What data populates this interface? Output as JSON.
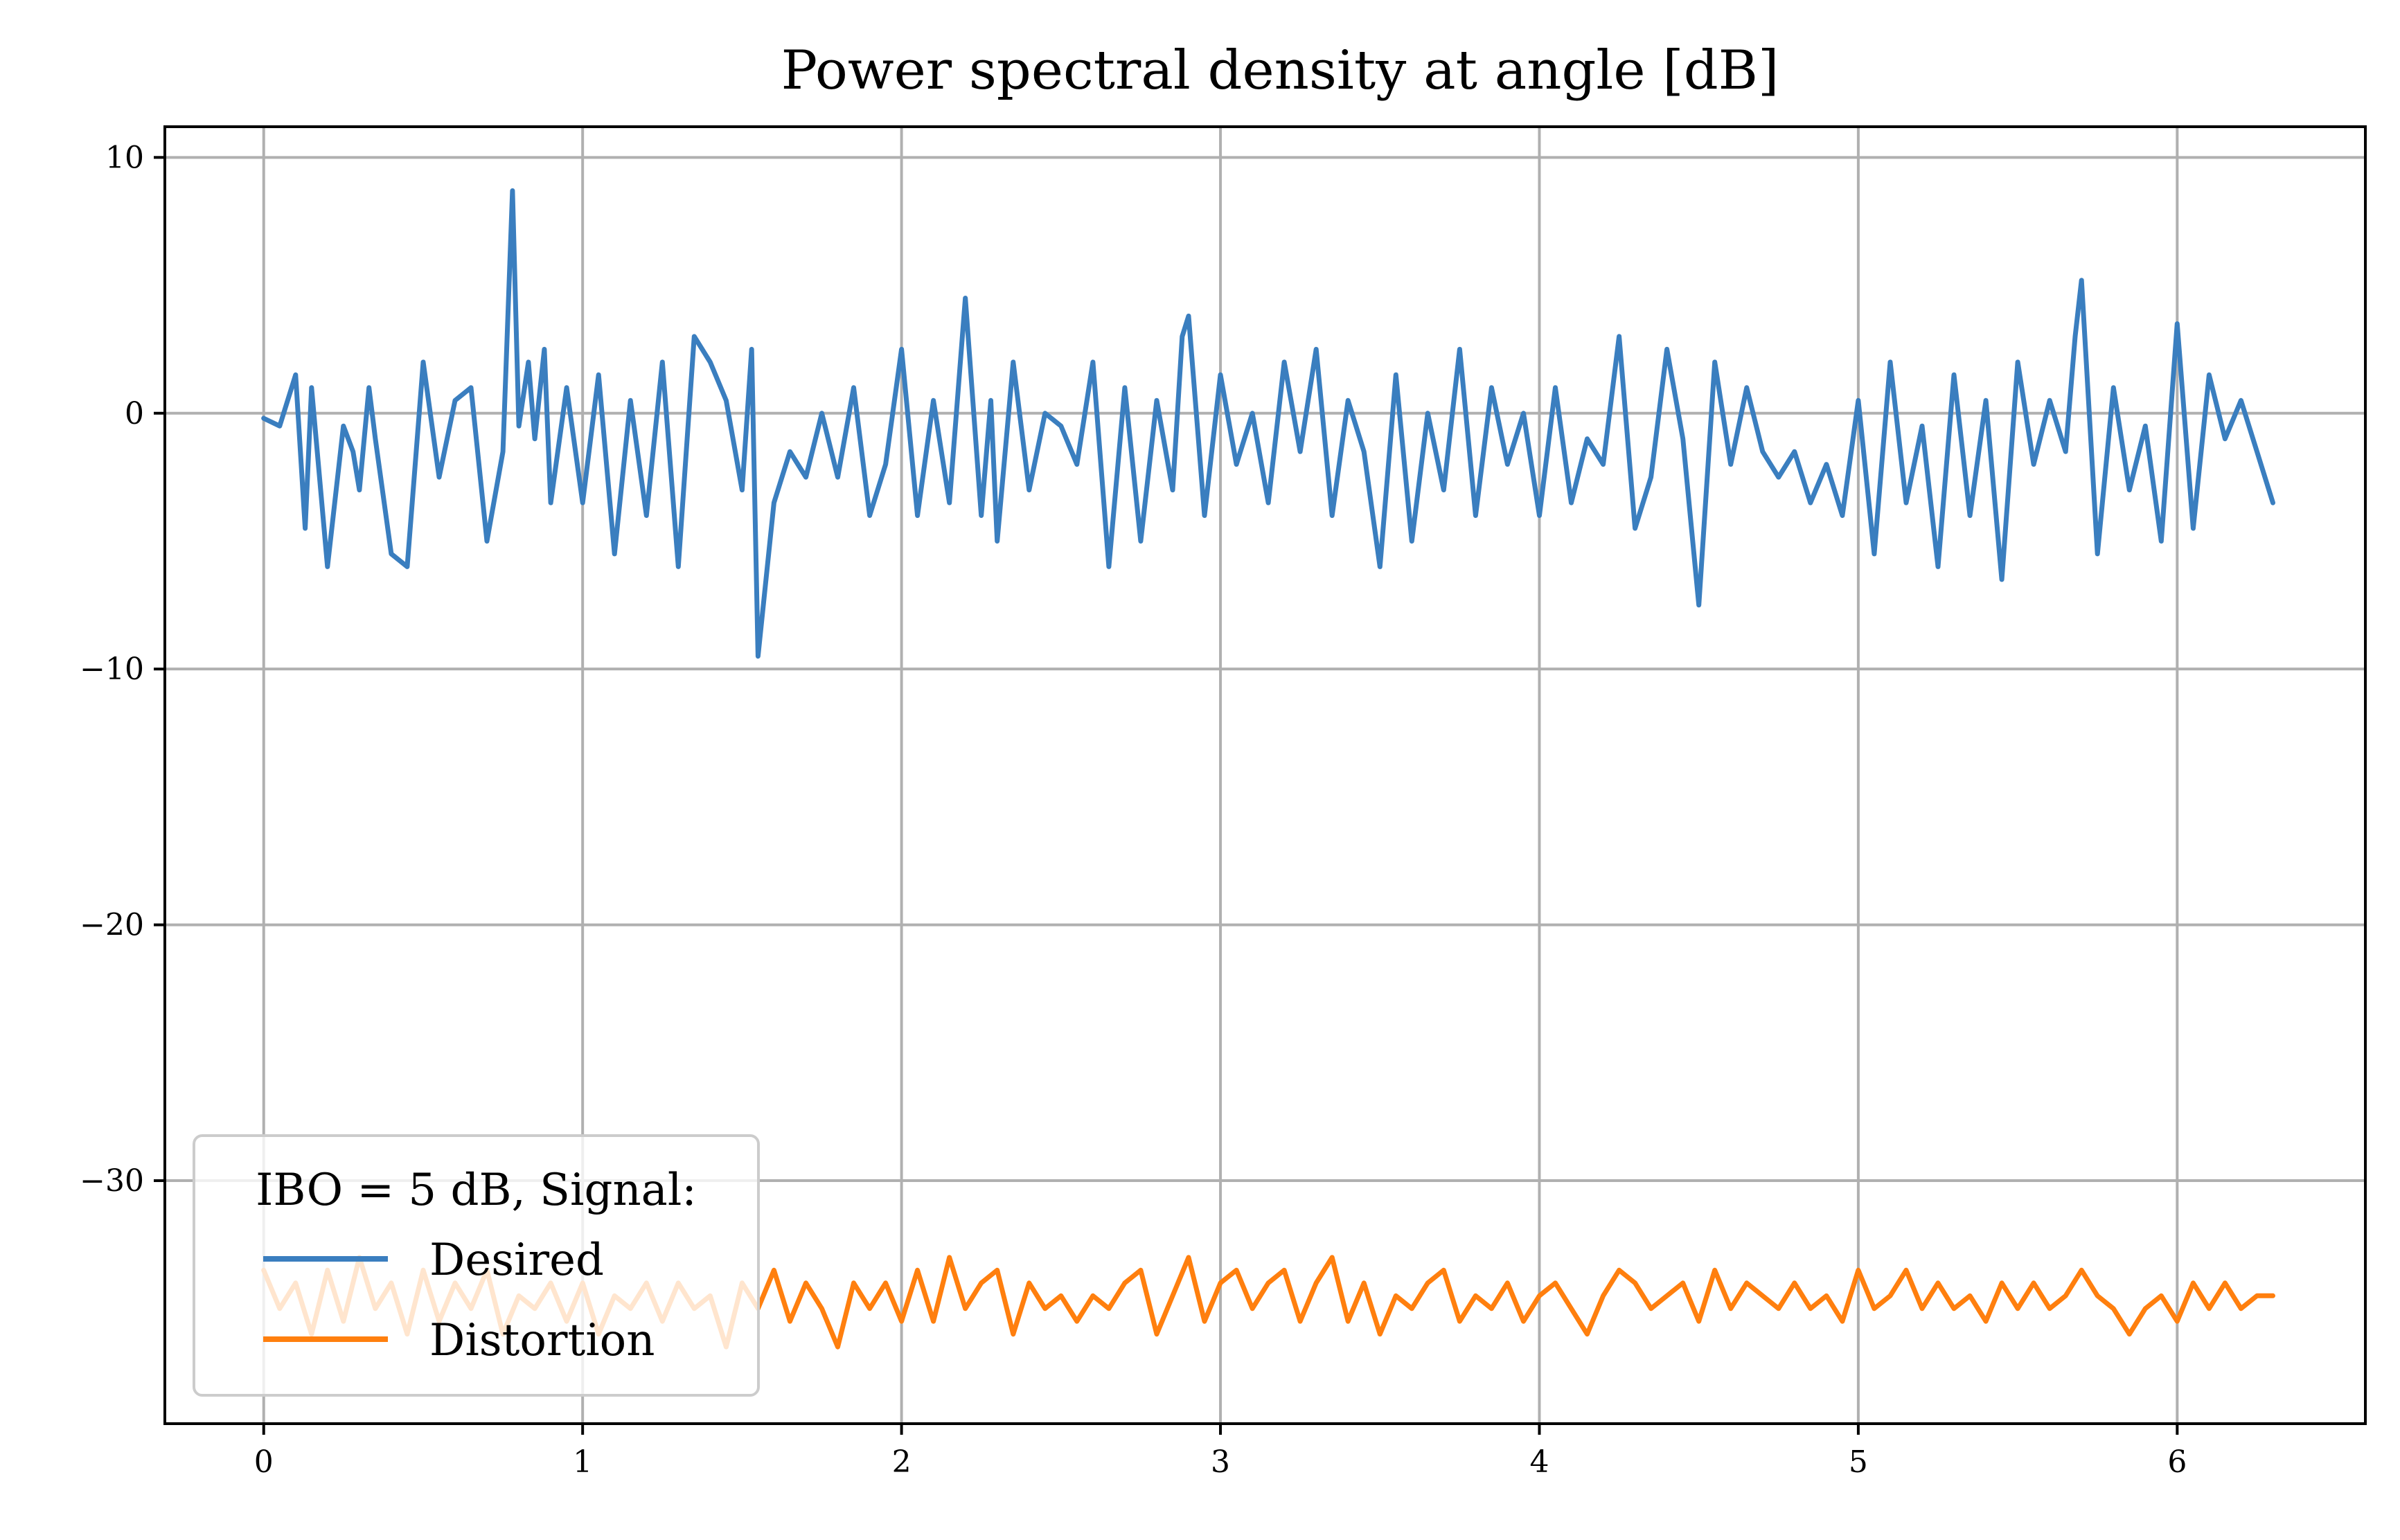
{
  "chart_data": {
    "type": "line",
    "title": "Power spectral density at angle [dB]",
    "xlabel": "",
    "ylabel": "",
    "xlim": [
      -0.31,
      6.59
    ],
    "ylim": [
      -39.5,
      11.2
    ],
    "xticks": [
      0,
      1,
      2,
      3,
      4,
      5,
      6
    ],
    "yticks": [
      10,
      0,
      -10,
      -20,
      -30
    ],
    "ytick_labels": [
      "10",
      "0",
      "−10",
      "−20",
      "−30"
    ],
    "grid": true,
    "legend": {
      "placement": "lower-left",
      "title": "IBO = 5 dB, Signal:",
      "entries": [
        "Desired",
        "Distortion"
      ]
    },
    "series": [
      {
        "name": "Desired",
        "color": "#3a7ebf",
        "x": [
          0.0,
          0.05,
          0.1,
          0.13,
          0.15,
          0.2,
          0.25,
          0.28,
          0.3,
          0.33,
          0.35,
          0.4,
          0.45,
          0.5,
          0.55,
          0.6,
          0.65,
          0.7,
          0.75,
          0.78,
          0.8,
          0.83,
          0.85,
          0.88,
          0.9,
          0.95,
          1.0,
          1.05,
          1.1,
          1.15,
          1.2,
          1.25,
          1.3,
          1.35,
          1.4,
          1.45,
          1.5,
          1.53,
          1.55,
          1.6,
          1.65,
          1.7,
          1.75,
          1.8,
          1.85,
          1.9,
          1.95,
          2.0,
          2.05,
          2.1,
          2.15,
          2.2,
          2.25,
          2.28,
          2.3,
          2.35,
          2.4,
          2.45,
          2.5,
          2.55,
          2.6,
          2.65,
          2.7,
          2.75,
          2.8,
          2.85,
          2.88,
          2.9,
          2.95,
          3.0,
          3.05,
          3.1,
          3.15,
          3.2,
          3.25,
          3.3,
          3.35,
          3.4,
          3.45,
          3.5,
          3.55,
          3.6,
          3.65,
          3.7,
          3.75,
          3.8,
          3.85,
          3.9,
          3.95,
          4.0,
          4.05,
          4.1,
          4.15,
          4.2,
          4.25,
          4.3,
          4.35,
          4.4,
          4.45,
          4.5,
          4.55,
          4.6,
          4.65,
          4.7,
          4.75,
          4.8,
          4.85,
          4.9,
          4.95,
          5.0,
          5.05,
          5.1,
          5.15,
          5.2,
          5.25,
          5.3,
          5.35,
          5.4,
          5.45,
          5.5,
          5.55,
          5.6,
          5.65,
          5.68,
          5.7,
          5.75,
          5.8,
          5.85,
          5.9,
          5.95,
          6.0,
          6.05,
          6.1,
          6.15,
          6.2,
          6.25,
          6.3
        ],
        "values": [
          -0.2,
          -0.5,
          1.5,
          -4.5,
          1.0,
          -6.0,
          -0.5,
          -1.5,
          -3.0,
          1.0,
          -1.0,
          -5.5,
          -6.0,
          2.0,
          -2.5,
          0.5,
          1.0,
          -5.0,
          -1.5,
          8.7,
          -0.5,
          2.0,
          -1.0,
          2.5,
          -3.5,
          1.0,
          -3.5,
          1.5,
          -5.5,
          0.5,
          -4.0,
          2.0,
          -6.0,
          3.0,
          2.0,
          0.5,
          -3.0,
          2.5,
          -9.5,
          -3.5,
          -1.5,
          -2.5,
          0.0,
          -2.5,
          1.0,
          -4.0,
          -2.0,
          2.5,
          -4.0,
          0.5,
          -3.5,
          4.5,
          -4.0,
          0.5,
          -5.0,
          2.0,
          -3.0,
          0.0,
          -0.5,
          -2.0,
          2.0,
          -6.0,
          1.0,
          -5.0,
          0.5,
          -3.0,
          3.0,
          3.8,
          -4.0,
          1.5,
          -2.0,
          0.0,
          -3.5,
          2.0,
          -1.5,
          2.5,
          -4.0,
          0.5,
          -1.5,
          -6.0,
          1.5,
          -5.0,
          0.0,
          -3.0,
          2.5,
          -4.0,
          1.0,
          -2.0,
          0.0,
          -4.0,
          1.0,
          -3.5,
          -1.0,
          -2.0,
          3.0,
          -4.5,
          -2.5,
          2.5,
          -1.0,
          -7.5,
          2.0,
          -2.0,
          1.0,
          -1.5,
          -2.5,
          -1.5,
          -3.5,
          -2.0,
          -4.0,
          0.5,
          -5.5,
          2.0,
          -3.5,
          -0.5,
          -6.0,
          1.5,
          -4.0,
          0.5,
          -6.5,
          2.0,
          -2.0,
          0.5,
          -1.5,
          3.0,
          5.2,
          -5.5,
          1.0,
          -3.0,
          -0.5,
          -5.0,
          3.5,
          -4.5,
          1.5,
          -1.0,
          0.5,
          -1.5,
          -3.5
        ]
      },
      {
        "name": "Distortion",
        "color": "#ff7f0e",
        "x": [
          0.0,
          0.05,
          0.1,
          0.15,
          0.2,
          0.25,
          0.3,
          0.35,
          0.4,
          0.45,
          0.5,
          0.55,
          0.6,
          0.65,
          0.7,
          0.75,
          0.8,
          0.85,
          0.9,
          0.95,
          1.0,
          1.05,
          1.1,
          1.15,
          1.2,
          1.25,
          1.3,
          1.35,
          1.4,
          1.45,
          1.5,
          1.55,
          1.6,
          1.65,
          1.7,
          1.75,
          1.8,
          1.85,
          1.9,
          1.95,
          2.0,
          2.05,
          2.1,
          2.15,
          2.2,
          2.25,
          2.3,
          2.35,
          2.4,
          2.45,
          2.5,
          2.55,
          2.6,
          2.65,
          2.7,
          2.75,
          2.8,
          2.85,
          2.9,
          2.95,
          3.0,
          3.05,
          3.1,
          3.15,
          3.2,
          3.25,
          3.3,
          3.35,
          3.4,
          3.45,
          3.5,
          3.55,
          3.6,
          3.65,
          3.7,
          3.75,
          3.8,
          3.85,
          3.9,
          3.95,
          4.0,
          4.05,
          4.1,
          4.15,
          4.2,
          4.25,
          4.3,
          4.35,
          4.4,
          4.45,
          4.5,
          4.55,
          4.6,
          4.65,
          4.7,
          4.75,
          4.8,
          4.85,
          4.9,
          4.95,
          5.0,
          5.05,
          5.1,
          5.15,
          5.2,
          5.25,
          5.3,
          5.35,
          5.4,
          5.45,
          5.5,
          5.55,
          5.6,
          5.65,
          5.7,
          5.75,
          5.8,
          5.85,
          5.9,
          5.95,
          6.0,
          6.05,
          6.1,
          6.15,
          6.2,
          6.25,
          6.3
        ],
        "values": [
          -33.5,
          -35.0,
          -34.0,
          -36.0,
          -33.5,
          -35.5,
          -33.0,
          -35.0,
          -34.0,
          -36.0,
          -33.5,
          -35.5,
          -34.0,
          -35.0,
          -33.5,
          -36.0,
          -34.5,
          -35.0,
          -34.0,
          -35.5,
          -34.0,
          -36.0,
          -34.5,
          -35.0,
          -34.0,
          -35.5,
          -34.0,
          -35.0,
          -34.5,
          -36.5,
          -34.0,
          -35.0,
          -33.5,
          -35.5,
          -34.0,
          -35.0,
          -36.5,
          -34.0,
          -35.0,
          -34.0,
          -35.5,
          -33.5,
          -35.5,
          -33.0,
          -35.0,
          -34.0,
          -33.5,
          -36.0,
          -34.0,
          -35.0,
          -34.5,
          -35.5,
          -34.5,
          -35.0,
          -34.0,
          -33.5,
          -36.0,
          -34.5,
          -33.0,
          -35.5,
          -34.0,
          -33.5,
          -35.0,
          -34.0,
          -33.5,
          -35.5,
          -34.0,
          -33.0,
          -35.5,
          -34.0,
          -36.0,
          -34.5,
          -35.0,
          -34.0,
          -33.5,
          -35.5,
          -34.5,
          -35.0,
          -34.0,
          -35.5,
          -34.5,
          -34.0,
          -35.0,
          -36.0,
          -34.5,
          -33.5,
          -34.0,
          -35.0,
          -34.5,
          -34.0,
          -35.5,
          -33.5,
          -35.0,
          -34.0,
          -34.5,
          -35.0,
          -34.0,
          -35.0,
          -34.5,
          -35.5,
          -33.5,
          -35.0,
          -34.5,
          -33.5,
          -35.0,
          -34.0,
          -35.0,
          -34.5,
          -35.5,
          -34.0,
          -35.0,
          -34.0,
          -35.0,
          -34.5,
          -33.5,
          -34.5,
          -35.0,
          -36.0,
          -35.0,
          -34.5,
          -35.5,
          -34.0,
          -35.0,
          -34.0,
          -35.0,
          -34.5,
          -34.5
        ]
      }
    ]
  }
}
